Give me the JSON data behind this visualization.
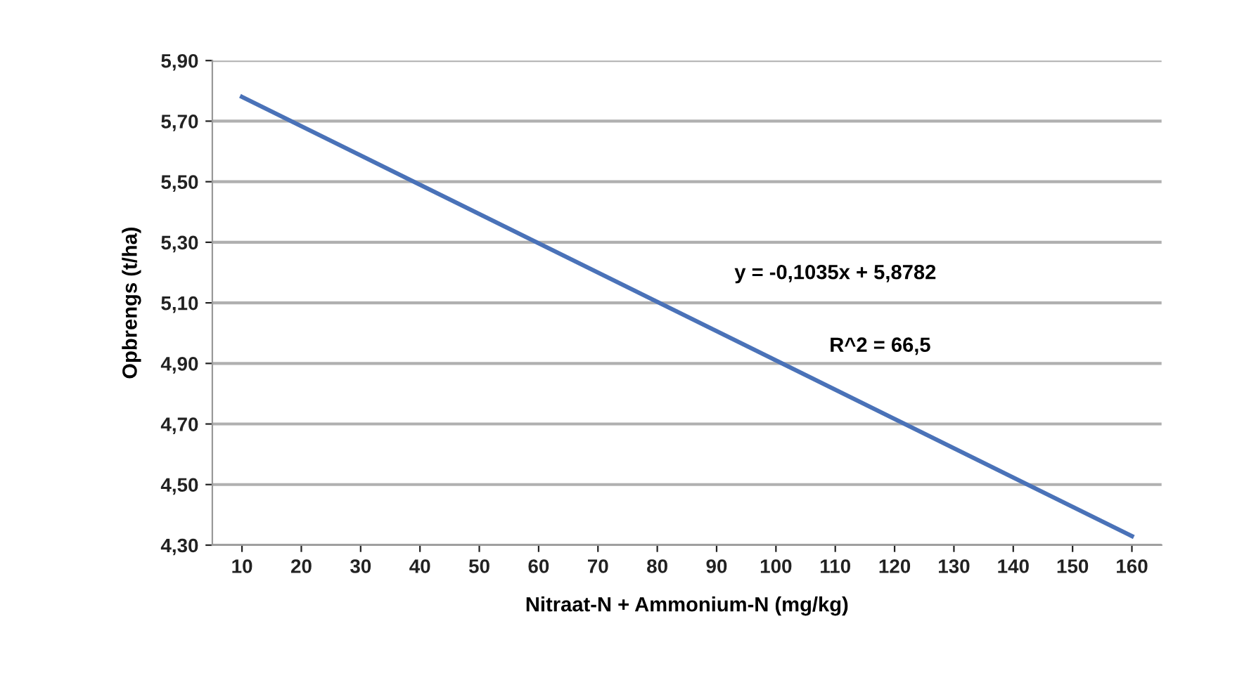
{
  "chart_data": {
    "type": "line",
    "xlabel": "Nitraat-N + Ammonium-N (mg/kg)",
    "ylabel": "Opbrengs (t/ha)",
    "x": [
      10,
      160
    ],
    "series": [
      {
        "color": "#4a72b8",
        "values": [
          5.78,
          4.33
        ]
      }
    ],
    "xlim": [
      5,
      165
    ],
    "xticks": [
      10,
      20,
      30,
      40,
      50,
      60,
      70,
      80,
      90,
      100,
      110,
      120,
      130,
      140,
      150,
      160
    ],
    "ylim": [
      4.3,
      5.9
    ],
    "yticks": [
      {
        "value": 4.3,
        "label": "4,30"
      },
      {
        "value": 4.5,
        "label": "4,50"
      },
      {
        "value": 4.7,
        "label": "4,70"
      },
      {
        "value": 4.9,
        "label": "4,90"
      },
      {
        "value": 5.1,
        "label": "5,10"
      },
      {
        "value": 5.3,
        "label": "5,30"
      },
      {
        "value": 5.5,
        "label": "5,50"
      },
      {
        "value": 5.7,
        "label": "5,70"
      },
      {
        "value": 5.9,
        "label": "5,90"
      }
    ],
    "grid": "y",
    "legend": false,
    "marker": "none",
    "line_style": "solid",
    "annotations": [
      "y = -0,1035x + 5,8782",
      "R^2 = 66,5"
    ]
  }
}
